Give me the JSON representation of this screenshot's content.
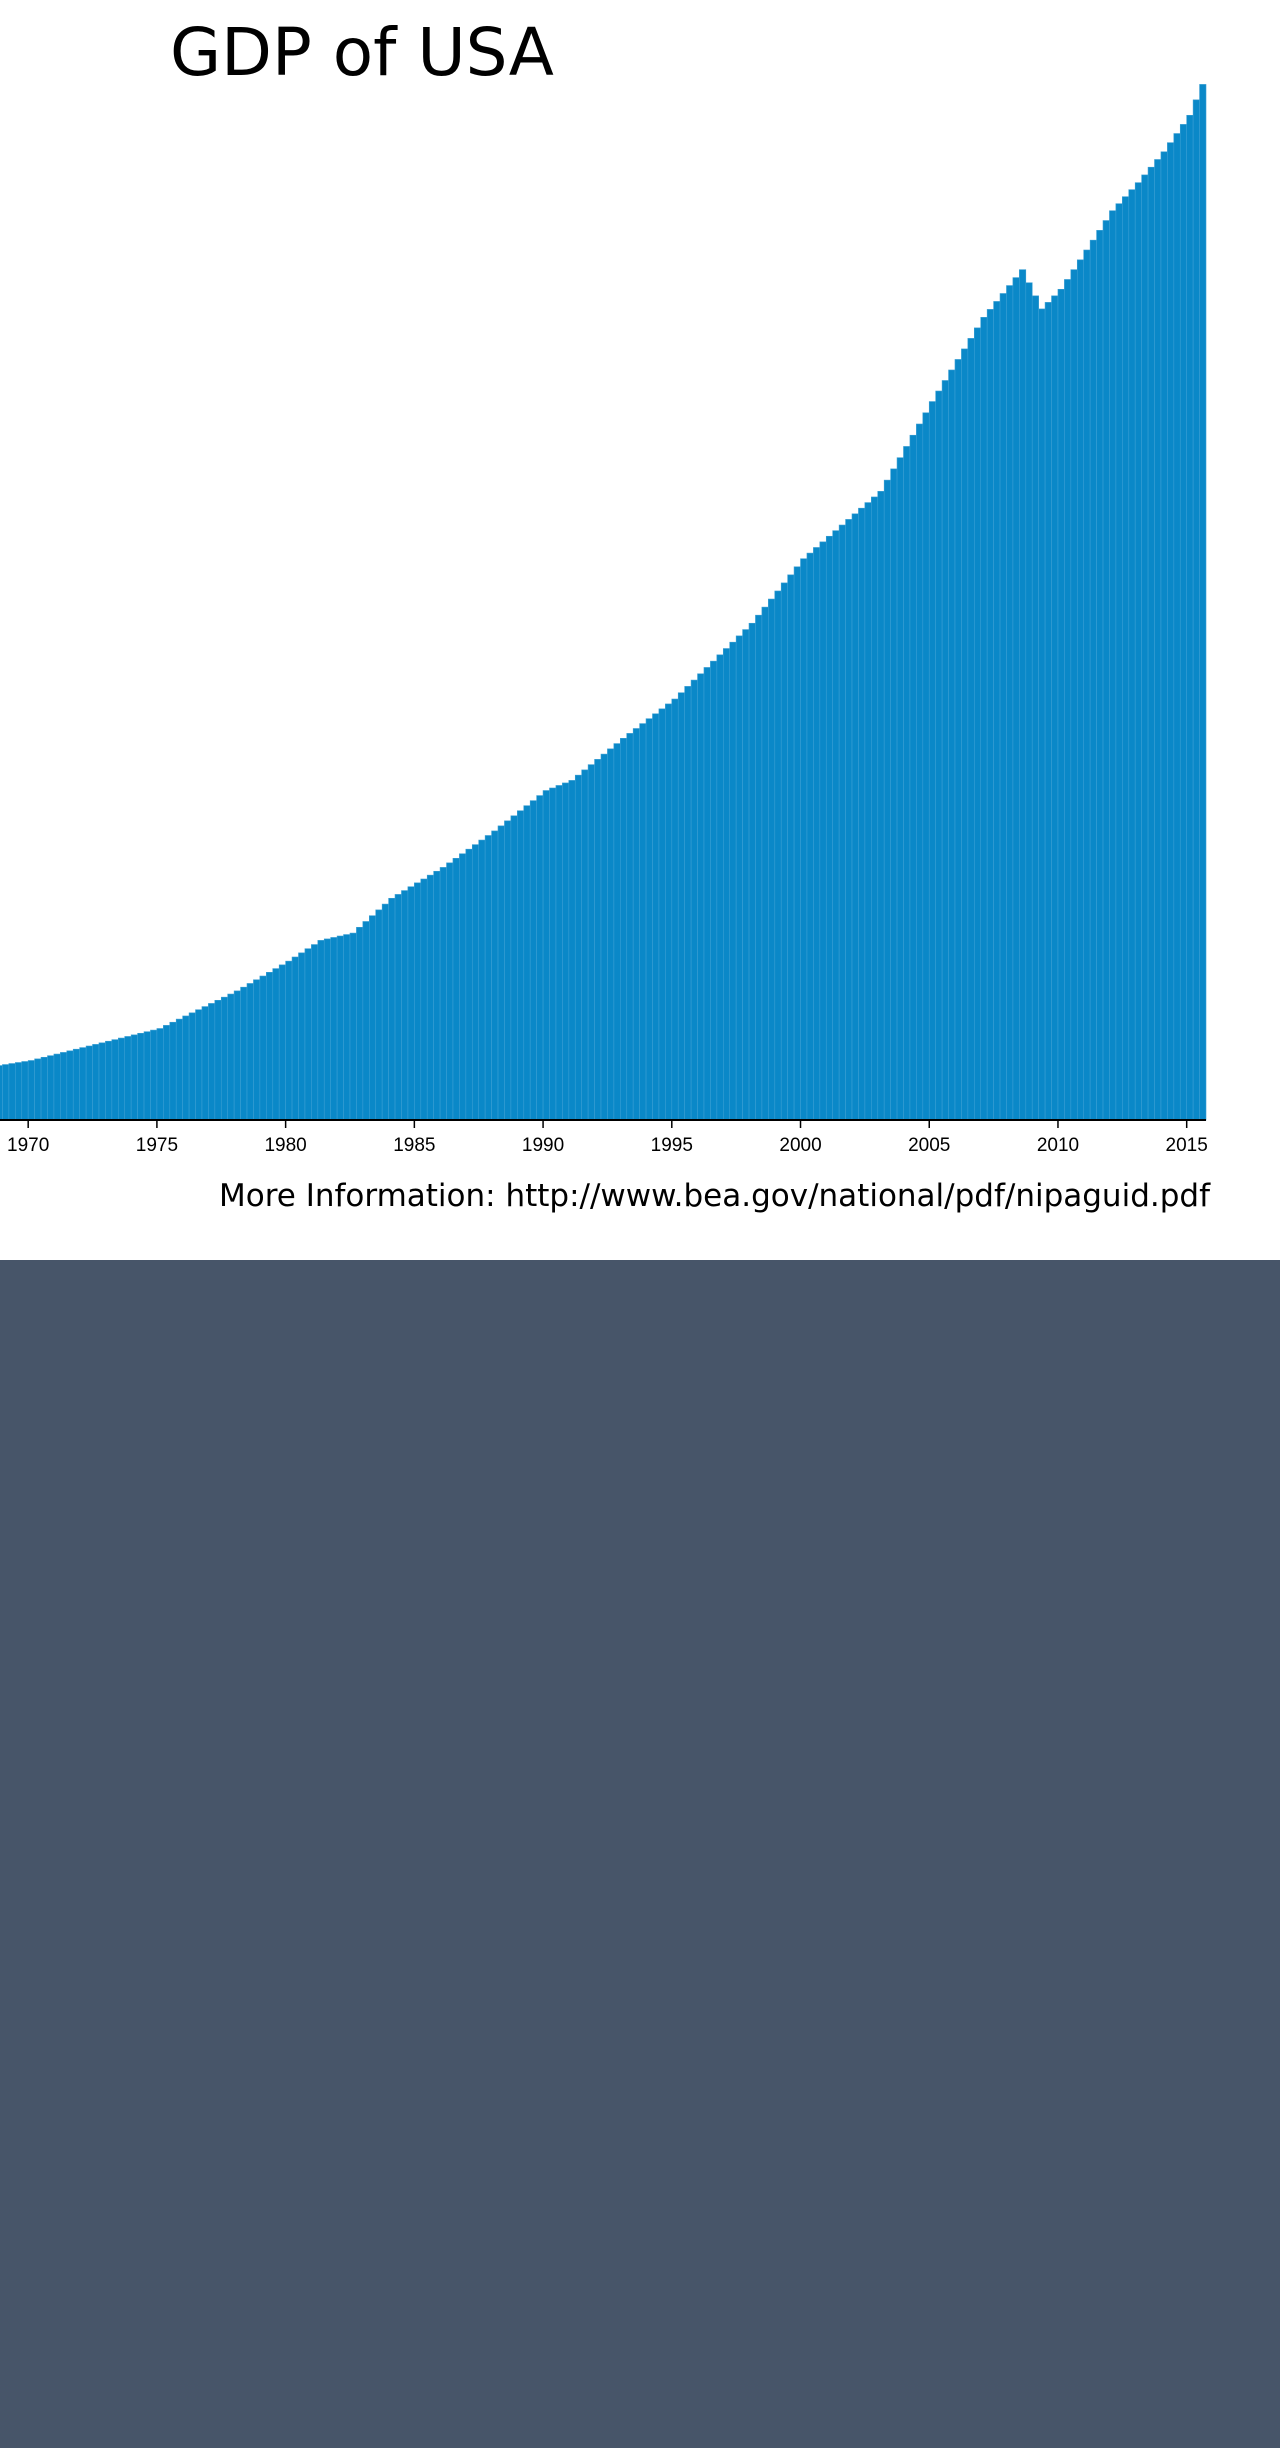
{
  "title": "GDP of USA",
  "footer": {
    "label": "More Information:",
    "url": "http://www.bea.gov/national/pdf/nipaguid.pdf"
  },
  "colors": {
    "bar": "#0a88c8",
    "panel_background": "#ffffff",
    "page_background": "#475569"
  },
  "chart_data": {
    "type": "bar",
    "title": "GDP of USA",
    "xlabel": "",
    "ylabel": "",
    "frequency": "quarterly",
    "x_start": "1968-Q4",
    "x_end": "2015-Q3",
    "x_ticks": [
      "1970",
      "1975",
      "1980",
      "1985",
      "1990",
      "1995",
      "2000",
      "2005",
      "2010",
      "2015"
    ],
    "ylim": [
      0,
      18600
    ],
    "grid": false,
    "legend": "none",
    "y_axis_visible": false,
    "anchor_values": [
      {
        "x": "1968-Q4",
        "value": 970
      },
      {
        "x": "1970-Q1",
        "value": 1060
      },
      {
        "x": "1972-Q1",
        "value": 1290
      },
      {
        "x": "1975-Q1",
        "value": 1630
      },
      {
        "x": "1978-Q1",
        "value": 2300
      },
      {
        "x": "1980-Q1",
        "value": 2830
      },
      {
        "x": "1981-Q2",
        "value": 3200
      },
      {
        "x": "1982-Q3",
        "value": 3330
      },
      {
        "x": "1984-Q1",
        "value": 3950
      },
      {
        "x": "1986-Q1",
        "value": 4500
      },
      {
        "x": "1988-Q1",
        "value": 5150
      },
      {
        "x": "1990-Q1",
        "value": 5870
      },
      {
        "x": "1991-Q1",
        "value": 6050
      },
      {
        "x": "1993-Q1",
        "value": 6800
      },
      {
        "x": "1995-Q1",
        "value": 7500
      },
      {
        "x": "1998-Q1",
        "value": 8850
      },
      {
        "x": "2000-Q1",
        "value": 10000
      },
      {
        "x": "2001-Q3",
        "value": 10600
      },
      {
        "x": "2003-Q1",
        "value": 11200
      },
      {
        "x": "2005-Q1",
        "value": 12800
      },
      {
        "x": "2007-Q1",
        "value": 14300
      },
      {
        "x": "2008-Q3",
        "value": 15150
      },
      {
        "x": "2009-Q2",
        "value": 14450
      },
      {
        "x": "2010-Q1",
        "value": 14800
      },
      {
        "x": "2012-Q1",
        "value": 16200
      },
      {
        "x": "2013-Q1",
        "value": 16700
      },
      {
        "x": "2014-Q1",
        "value": 17250
      },
      {
        "x": "2015-Q1",
        "value": 17900
      },
      {
        "x": "2015-Q3",
        "value": 18450
      }
    ]
  }
}
